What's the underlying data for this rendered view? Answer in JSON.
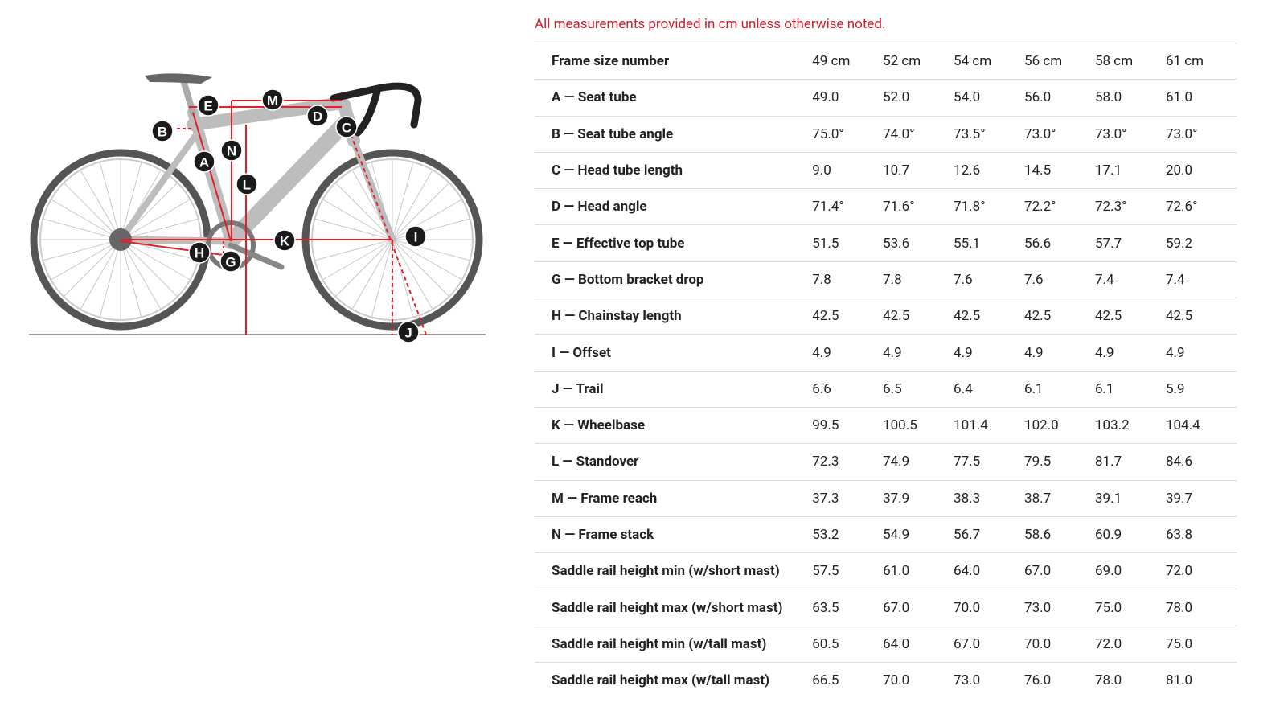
{
  "note": "All measurements provided in cm unless otherwise noted.",
  "diagram": {
    "labels": [
      "M",
      "E",
      "D",
      "C",
      "B",
      "N",
      "A",
      "L",
      "K",
      "I",
      "H",
      "G",
      "J"
    ]
  },
  "table": {
    "header": [
      "Frame size number",
      "49 cm",
      "52 cm",
      "54 cm",
      "56 cm",
      "58 cm",
      "61 cm"
    ],
    "rows": [
      [
        "A — Seat tube",
        "49.0",
        "52.0",
        "54.0",
        "56.0",
        "58.0",
        "61.0"
      ],
      [
        "B — Seat tube angle",
        "75.0°",
        "74.0°",
        "73.5°",
        "73.0°",
        "73.0°",
        "73.0°"
      ],
      [
        "C — Head tube length",
        "9.0",
        "10.7",
        "12.6",
        "14.5",
        "17.1",
        "20.0"
      ],
      [
        "D — Head angle",
        "71.4°",
        "71.6°",
        "71.8°",
        "72.2°",
        "72.3°",
        "72.6°"
      ],
      [
        "E — Effective top tube",
        "51.5",
        "53.6",
        "55.1",
        "56.6",
        "57.7",
        "59.2"
      ],
      [
        "G — Bottom bracket drop",
        "7.8",
        "7.8",
        "7.6",
        "7.6",
        "7.4",
        "7.4"
      ],
      [
        "H — Chainstay length",
        "42.5",
        "42.5",
        "42.5",
        "42.5",
        "42.5",
        "42.5"
      ],
      [
        "I — Offset",
        "4.9",
        "4.9",
        "4.9",
        "4.9",
        "4.9",
        "4.9"
      ],
      [
        "J — Trail",
        "6.6",
        "6.5",
        "6.4",
        "6.1",
        "6.1",
        "5.9"
      ],
      [
        "K — Wheelbase",
        "99.5",
        "100.5",
        "101.4",
        "102.0",
        "103.2",
        "104.4"
      ],
      [
        "L — Standover",
        "72.3",
        "74.9",
        "77.5",
        "79.5",
        "81.7",
        "84.6"
      ],
      [
        "M — Frame reach",
        "37.3",
        "37.9",
        "38.3",
        "38.7",
        "39.1",
        "39.7"
      ],
      [
        "N — Frame stack",
        "53.2",
        "54.9",
        "56.7",
        "58.6",
        "60.9",
        "63.8"
      ],
      [
        "Saddle rail height min (w/short mast)",
        "57.5",
        "61.0",
        "64.0",
        "67.0",
        "69.0",
        "72.0"
      ],
      [
        "Saddle rail height max (w/short mast)",
        "63.5",
        "67.0",
        "70.0",
        "73.0",
        "75.0",
        "78.0"
      ],
      [
        "Saddle rail height min (w/tall mast)",
        "60.5",
        "64.0",
        "67.0",
        "70.0",
        "72.0",
        "75.0"
      ],
      [
        "Saddle rail height max (w/tall mast)",
        "66.5",
        "70.0",
        "73.0",
        "76.0",
        "78.0",
        "81.0"
      ]
    ]
  }
}
